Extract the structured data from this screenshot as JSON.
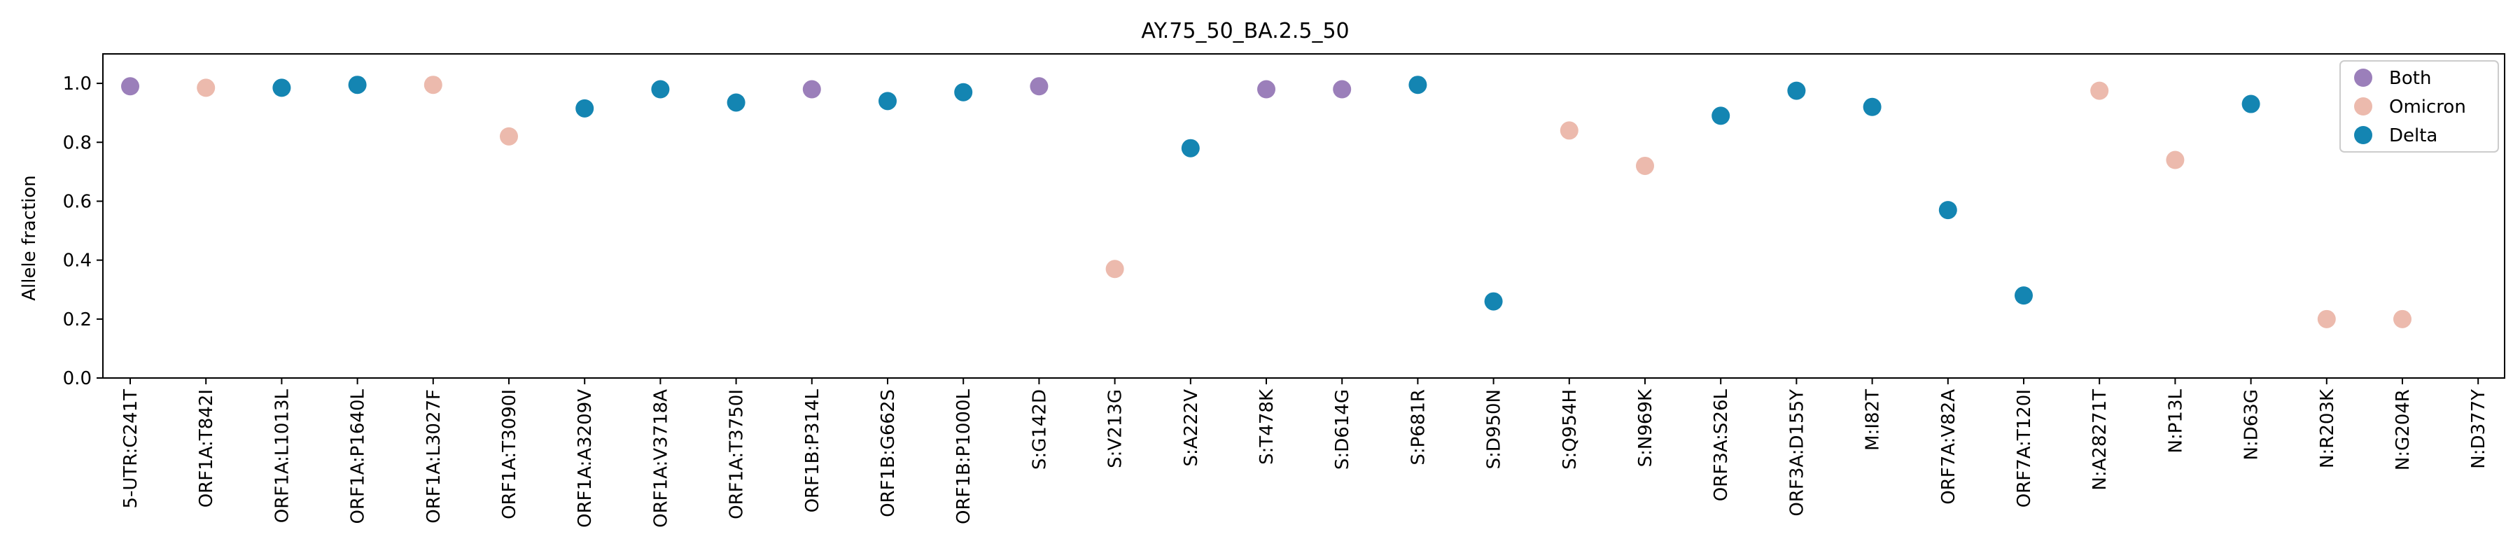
{
  "chart_data": {
    "type": "scatter",
    "title": "AY.75_50_BA.2.5_50",
    "xlabel": "",
    "ylabel": "Allele fraction",
    "ylim": [
      0,
      1.1
    ],
    "yticks": [
      "0.0",
      "0.2",
      "0.4",
      "0.6",
      "0.8",
      "1.0"
    ],
    "grid": false,
    "legend_position": "top-right",
    "categories": [
      "5-UTR:C241T",
      "ORF1A:T842I",
      "ORF1A:L1013L",
      "ORF1A:P1640L",
      "ORF1A:L3027F",
      "ORF1A:T3090I",
      "ORF1A:A3209V",
      "ORF1A:V3718A",
      "ORF1A:T3750I",
      "ORF1B:P314L",
      "ORF1B:G662S",
      "ORF1B:P1000L",
      "S:G142D",
      "S:V213G",
      "S:A222V",
      "S:T478K",
      "S:D614G",
      "S:P681R",
      "S:D950N",
      "S:Q954H",
      "S:N969K",
      "ORF3A:S26L",
      "ORF3A:D155Y",
      "M:I82T",
      "ORF7A:V82A",
      "ORF7A:T120I",
      "N:A28271T",
      "N:P13L",
      "N:D63G",
      "N:R203K",
      "N:G204R",
      "N:D377Y"
    ],
    "series": [
      {
        "name": "Both",
        "color": "#9b7fba",
        "points": [
          [
            "5-UTR:C241T",
            0.99
          ],
          [
            "ORF1B:P314L",
            0.98
          ],
          [
            "S:G142D",
            0.99
          ],
          [
            "S:T478K",
            0.98
          ],
          [
            "S:D614G",
            0.98
          ]
        ]
      },
      {
        "name": "Omicron",
        "color": "#ecbaad",
        "points": [
          [
            "ORF1A:T842I",
            0.985
          ],
          [
            "ORF1A:L3027F",
            0.995
          ],
          [
            "ORF1A:T3090I",
            0.82
          ],
          [
            "S:V213G",
            0.37
          ],
          [
            "S:Q954H",
            0.84
          ],
          [
            "S:N969K",
            0.72
          ],
          [
            "N:A28271T",
            0.975
          ],
          [
            "N:P13L",
            0.74
          ],
          [
            "N:R203K",
            0.2
          ],
          [
            "N:G204R",
            0.2
          ]
        ]
      },
      {
        "name": "Delta",
        "color": "#1485b2",
        "points": [
          [
            "ORF1A:L1013L",
            0.985
          ],
          [
            "ORF1A:P1640L",
            0.995
          ],
          [
            "ORF1A:A3209V",
            0.915
          ],
          [
            "ORF1A:V3718A",
            0.98
          ],
          [
            "ORF1A:T3750I",
            0.935
          ],
          [
            "ORF1B:G662S",
            0.94
          ],
          [
            "ORF1B:P1000L",
            0.97
          ],
          [
            "S:A222V",
            0.78
          ],
          [
            "S:P681R",
            0.995
          ],
          [
            "S:D950N",
            0.26
          ],
          [
            "ORF3A:S26L",
            0.89
          ],
          [
            "ORF3A:D155Y",
            0.975
          ],
          [
            "M:I82T",
            0.92
          ],
          [
            "ORF7A:V82A",
            0.57
          ],
          [
            "ORF7A:T120I",
            0.28
          ],
          [
            "N:D63G",
            0.93
          ]
        ]
      }
    ]
  }
}
